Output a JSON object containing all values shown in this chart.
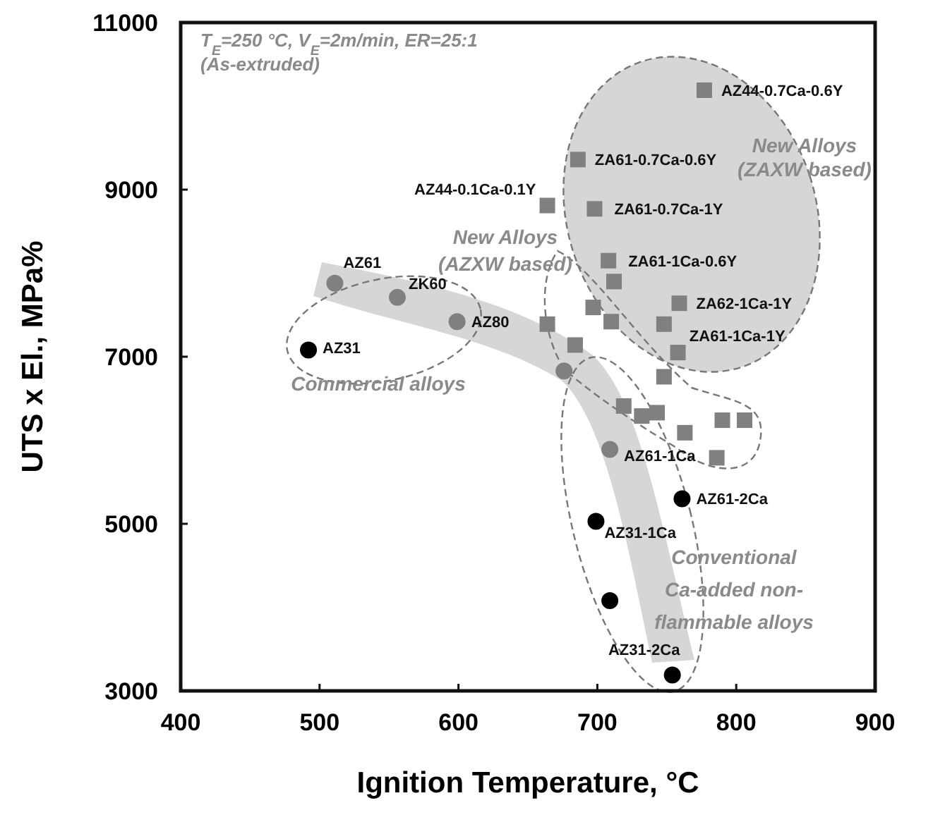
{
  "chart_data": {
    "type": "scatter",
    "xlabel": "Ignition Temperature, °C",
    "ylabel": "UTS x El., MPa%",
    "xlim": [
      400,
      900
    ],
    "xticks": [
      400,
      500,
      600,
      700,
      800,
      900
    ],
    "ylim": [
      3000,
      11000
    ],
    "yticks": [
      3000,
      5000,
      7000,
      9000,
      11000
    ],
    "series": [
      {
        "marker": "circle",
        "x": [
          511,
          556,
          599,
          492,
          676,
          709,
          761,
          699,
          709,
          754
        ],
        "values": [
          7880,
          7710,
          7420,
          7080,
          6830,
          5890,
          5300,
          5030,
          4080,
          3190
        ],
        "colors": [
          "#808080",
          "#808080",
          "#808080",
          "#000000",
          "#808080",
          "#808080",
          "#000000",
          "#000000",
          "#000000",
          "#000000"
        ]
      },
      {
        "marker": "square",
        "color": "#808080",
        "x": [
          777,
          686,
          698,
          664,
          708,
          712,
          759,
          748,
          697,
          710,
          664,
          684,
          758,
          748,
          719,
          732,
          743,
          763,
          790,
          806,
          786
        ],
        "values": [
          10190,
          9360,
          8770,
          8810,
          8150,
          7900,
          7640,
          7390,
          7590,
          7420,
          7390,
          7140,
          7050,
          6760,
          6410,
          6290,
          6330,
          6090,
          6240,
          6240,
          5790
        ]
      }
    ],
    "annotations": [
      "T$_{E}$=250 °C, V$_{E}$=2m/min, ER=25:1",
      "(As-extruded)",
      "New Alloys\n(ZAXW based)",
      "New Alloys\n(AZXW based)",
      "Commercial alloys",
      "Conventional\nCa-added non-\nflammable alloys",
      {
        "text": "AZ61",
        "x": 511,
        "y": 7880
      },
      {
        "text": "ZK60",
        "x": 556,
        "y": 7710
      },
      {
        "text": "AZ80",
        "x": 599,
        "y": 7420
      },
      {
        "text": "AZ31",
        "x": 492,
        "y": 7080
      },
      {
        "text": "AZ61-1Ca",
        "x": 709,
        "y": 5890
      },
      {
        "text": "AZ61-2Ca",
        "x": 761,
        "y": 5300
      },
      {
        "text": "AZ31-1Ca",
        "x": 699,
        "y": 5030
      },
      {
        "text": "AZ31-2Ca",
        "x": 754,
        "y": 3190
      },
      {
        "text": "AZ44-0.7Ca-0.6Y",
        "x": 777,
        "y": 10190
      },
      {
        "text": "ZA61-0.7Ca-0.6Y",
        "x": 686,
        "y": 9360
      },
      {
        "text": "ZA61-0.7Ca-1Y",
        "x": 698,
        "y": 8770
      },
      {
        "text": "ZA61-1Ca-0.6Y",
        "x": 708,
        "y": 8150
      },
      {
        "text": "ZA62-1Ca-1Y",
        "x": 759,
        "y": 7640
      },
      {
        "text": "ZA61-1Ca-1Y",
        "x": 748,
        "y": 7390
      },
      {
        "text": "AZ44-0.1Ca-0.1Y",
        "x": 664,
        "y": 8810
      }
    ]
  }
}
